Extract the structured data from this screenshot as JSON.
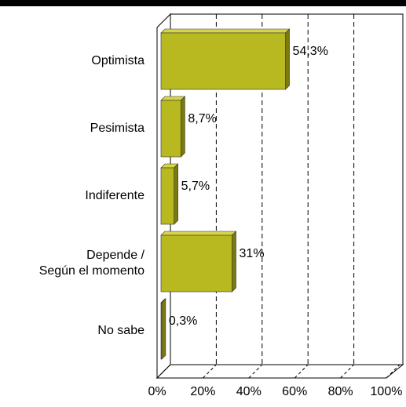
{
  "chart_data": {
    "type": "bar",
    "orientation": "horizontal",
    "categories": [
      "Optimista",
      "Pesimista",
      "Indiferente",
      [
        "Depende /",
        "Según el momento"
      ],
      "No sabe"
    ],
    "values": [
      54.3,
      8.7,
      5.7,
      31,
      0.3
    ],
    "value_labels": [
      "54,3%",
      "8,7%",
      "5,7%",
      "31%",
      "0,3%"
    ],
    "color": "#b8b820",
    "xlim": [
      0,
      100
    ],
    "xticks": [
      {
        "value": 0,
        "label": "0%"
      },
      {
        "value": 20,
        "label": "20%"
      },
      {
        "value": 40,
        "label": "40%"
      },
      {
        "value": 60,
        "label": "60%"
      },
      {
        "value": 80,
        "label": "80%"
      },
      {
        "value": 100,
        "label": "100%"
      }
    ],
    "grid": true
  }
}
